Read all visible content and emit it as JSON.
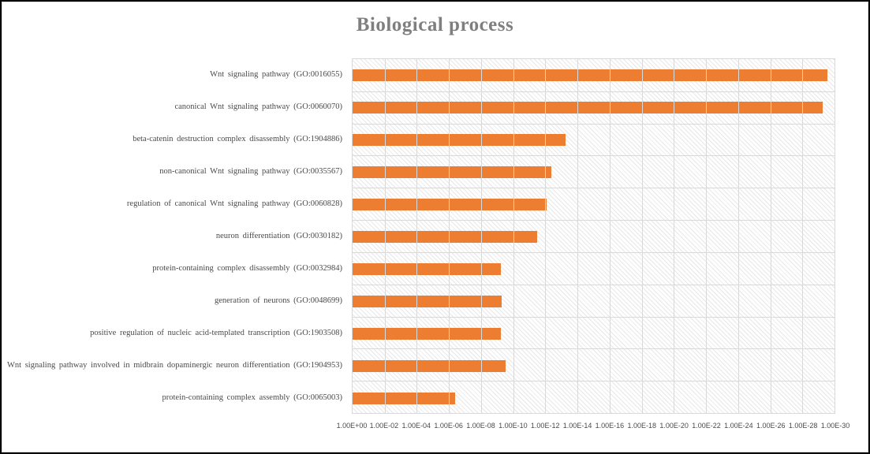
{
  "window": {
    "background_color": "#ffffff",
    "border_color": "#000000"
  },
  "chart_data": {
    "type": "bar",
    "orientation": "horizontal",
    "title": "Biological process",
    "title_color": "#7f7f7f",
    "bar_color": "#ed7d31",
    "gridline_color": "#d9d9d9",
    "plot_background": "diagonal-hatch",
    "x_axis_scale": "log10-reversed",
    "x_axis_left_value": "1.00E+00",
    "x_axis_right_value": "1.00E-30",
    "x_tick_labels": [
      "1.00E+00",
      "1.00E-02",
      "1.00E-04",
      "1.00E-06",
      "1.00E-08",
      "1.00E-10",
      "1.00E-12",
      "1.00E-14",
      "1.00E-16",
      "1.00E-18",
      "1.00E-20",
      "1.00E-22",
      "1.00E-24",
      "1.00E-26",
      "1.00E-28",
      "1.00E-30"
    ],
    "legend": "none",
    "categories": [
      {
        "label": "Wnt signaling pathway (GO:0016055)",
        "p_value": "2.8E-30"
      },
      {
        "label": "canonical Wnt signaling pathway (GO:0060070)",
        "p_value": "5.6E-30"
      },
      {
        "label": "beta-catenin destruction complex disassembly (GO:1904886)",
        "p_value": "5.6E-14"
      },
      {
        "label": "non-canonical Wnt signaling pathway (GO:0035567)",
        "p_value": "4.3E-13"
      },
      {
        "label": "regulation of canonical Wnt signaling pathway (GO:0060828)",
        "p_value": "8.3E-13"
      },
      {
        "label": "neuron differentiation (GO:0030182)",
        "p_value": "3.2E-12"
      },
      {
        "label": "protein-containing complex disassembly (GO:0032984)",
        "p_value": "5.8E-10"
      },
      {
        "label": "generation of neurons (GO:0048699)",
        "p_value": "5.0E-10"
      },
      {
        "label": "positive regulation of nucleic acid-templated transcription (GO:1903508)",
        "p_value": "5.8E-10"
      },
      {
        "label": "Wnt signaling pathway involved in midbrain dopaminergic neuron differentiation (GO:1904953)",
        "p_value": "3.0E-10"
      },
      {
        "label": "protein-containing complex assembly (GO:0065003)",
        "p_value": "4.0E-07"
      }
    ]
  }
}
